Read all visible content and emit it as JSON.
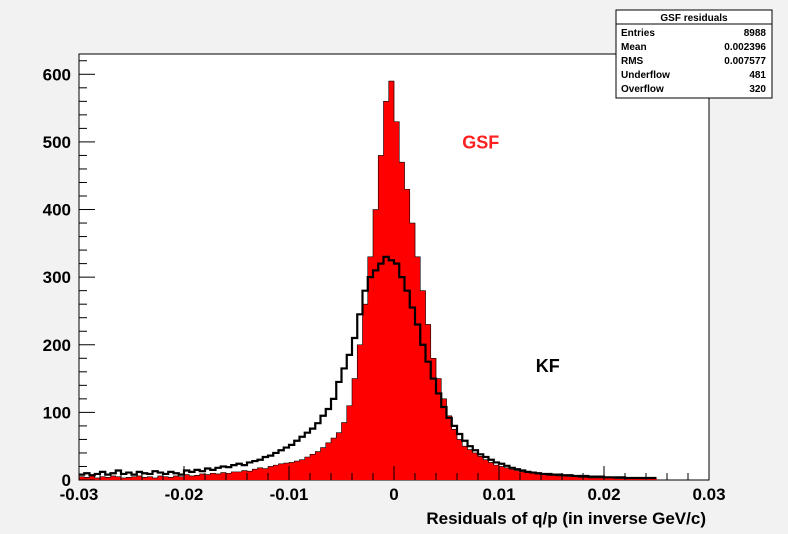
{
  "chart_data": {
    "type": "histogram",
    "xlabel": "Residuals of q/p (in inverse GeV/c)",
    "ylabel": "",
    "xlim": [
      -0.03,
      0.03
    ],
    "ylim": [
      0,
      630
    ],
    "x_ticks": [
      -0.03,
      -0.02,
      -0.01,
      0,
      0.01,
      0.02,
      0.03
    ],
    "x_tick_labels": [
      "-0.03",
      "-0.02",
      "-0.01",
      "0",
      "0.01",
      "0.02",
      "0.03"
    ],
    "y_ticks": [
      0,
      100,
      200,
      300,
      400,
      500,
      600
    ],
    "y_tick_labels": [
      "0",
      "100",
      "200",
      "300",
      "400",
      "500",
      "600"
    ],
    "bin_width": 0.0005,
    "x_start": -0.03,
    "series": [
      {
        "name": "GSF",
        "style": "filled",
        "color": "#ff0000",
        "values": [
          5,
          4,
          6,
          3,
          5,
          4,
          6,
          5,
          3,
          4,
          5,
          6,
          4,
          5,
          3,
          6,
          5,
          4,
          6,
          5,
          8,
          6,
          7,
          9,
          8,
          10,
          9,
          11,
          10,
          12,
          12,
          14,
          13,
          16,
          18,
          17,
          20,
          22,
          24,
          25,
          26,
          28,
          30,
          34,
          38,
          42,
          48,
          55,
          62,
          70,
          85,
          110,
          150,
          200,
          260,
          330,
          400,
          480,
          560,
          590,
          530,
          470,
          430,
          380,
          330,
          280,
          230,
          180,
          150,
          120,
          95,
          75,
          60,
          50,
          45,
          40,
          35,
          30,
          26,
          22,
          20,
          18,
          16,
          14,
          12,
          11,
          10,
          9,
          8,
          7,
          7,
          6,
          6,
          5,
          5,
          4,
          4,
          3,
          3,
          3,
          3,
          3,
          2,
          2,
          2,
          2,
          2,
          2,
          2,
          2
        ]
      },
      {
        "name": "KF",
        "style": "step",
        "color": "#000000",
        "values": [
          8,
          10,
          7,
          9,
          12,
          8,
          10,
          14,
          9,
          11,
          8,
          12,
          10,
          9,
          13,
          11,
          9,
          12,
          10,
          8,
          14,
          12,
          15,
          13,
          17,
          15,
          18,
          20,
          19,
          22,
          24,
          22,
          26,
          28,
          30,
          34,
          36,
          40,
          44,
          48,
          52,
          58,
          64,
          70,
          76,
          84,
          95,
          105,
          120,
          145,
          165,
          185,
          210,
          245,
          280,
          300,
          310,
          320,
          330,
          325,
          320,
          300,
          280,
          255,
          230,
          200,
          175,
          150,
          128,
          108,
          92,
          80,
          68,
          58,
          50,
          44,
          38,
          34,
          30,
          26,
          24,
          21,
          18,
          16,
          14,
          12,
          11,
          10,
          9,
          9,
          8,
          8,
          7,
          7,
          6,
          6,
          6,
          5,
          5,
          5,
          4,
          4,
          4,
          4,
          3,
          3,
          3,
          3,
          3,
          3
        ]
      }
    ],
    "annotations": [
      {
        "text": "GSF",
        "x": 0.0065,
        "y": 490,
        "color": "#ff2020"
      },
      {
        "text": "KF",
        "x": 0.0135,
        "y": 160,
        "color": "#000000"
      }
    ],
    "stats_box": {
      "title": "GSF residuals",
      "rows": [
        {
          "label": "Entries",
          "value": "8988"
        },
        {
          "label": "Mean",
          "value": "0.002396"
        },
        {
          "label": "RMS",
          "value": "0.007577"
        },
        {
          "label": "Underflow",
          "value": "481"
        },
        {
          "label": "Overflow",
          "value": "320"
        }
      ]
    }
  }
}
